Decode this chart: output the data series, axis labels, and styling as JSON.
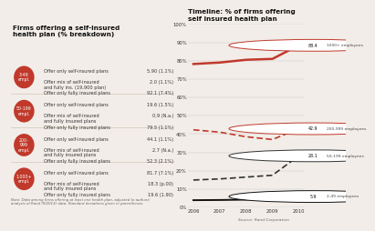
{
  "left_title": "Firms offering a self-insured\nhealth plan (% breakdown)",
  "right_title": "Timeline: % of firms offering\nself insured health plan",
  "source": "Source: Rand Corporation",
  "size_groups": [
    {
      "label": "3-49\nempl.",
      "rows": [
        {
          "text": "Offer only self-insured plans",
          "val": "5.90 (1.1%)"
        },
        {
          "text": "Offer mix of self-insured\nand fully ins. (19,900 plan)",
          "val": "2.0 (1.1%)"
        },
        {
          "text": "Offer only fully insured plans",
          "val": "92.1 (7.4%)"
        }
      ]
    },
    {
      "label": "50-199\nempl.",
      "rows": [
        {
          "text": "Offer only self-insured plans",
          "val": "19.6 (1.5%)"
        },
        {
          "text": "Offer mix of self-insured\nand fully insured plans",
          "val": "0.9 (N.a.)"
        },
        {
          "text": "Offer only fully insured plans",
          "val": "79.5 (1.1%)"
        }
      ]
    },
    {
      "label": "200-\n999\nempl.",
      "rows": [
        {
          "text": "Offer only self-insured plans",
          "val": "44.1 (1.1%)"
        },
        {
          "text": "Offer mix of self-insured\nand fully insured plans",
          "val": "2.7 (N.a.)"
        },
        {
          "text": "Offer only fully insured plans",
          "val": "52.3 (2.1%)"
        }
      ]
    },
    {
      "label": "1,000+\nempl.",
      "rows": [
        {
          "text": "Offer only self-insured plans",
          "val": "81.7 (7.1%)"
        },
        {
          "text": "Offer mix of self-insured\nand fully insured plans",
          "val": "18.3 (p.00)"
        },
        {
          "text": "Offer only fully insured plans",
          "val": "19.6 (1.90)"
        }
      ]
    }
  ],
  "years": [
    2006,
    2007,
    2008,
    2009,
    2010
  ],
  "lines": [
    {
      "label": "1000+ employees",
      "color": "#c0392b",
      "style": "solid",
      "lw": 1.8,
      "values": [
        78.2,
        79.0,
        80.5,
        81.0,
        88.4
      ],
      "end_label": "88.4"
    },
    {
      "label": "200-999 employees",
      "color": "#c0392b",
      "style": "dashed",
      "lw": 1.2,
      "values": [
        42.3,
        41.0,
        38.5,
        37.0,
        42.9
      ],
      "end_label": "42.9"
    },
    {
      "label": "50-199 employees",
      "color": "#333333",
      "style": "dashed",
      "lw": 1.2,
      "values": [
        14.9,
        15.5,
        16.5,
        17.5,
        28.1
      ],
      "end_label": "28.1"
    },
    {
      "label": "2-49 employees",
      "color": "#111111",
      "style": "solid",
      "lw": 1.4,
      "values": [
        3.9,
        4.0,
        4.2,
        4.5,
        5.9
      ],
      "end_label": "5.9"
    }
  ],
  "ylim": [
    0,
    100
  ],
  "yticks": [
    0,
    10,
    20,
    30,
    40,
    50,
    60,
    70,
    80,
    90,
    100
  ],
  "ytick_labels": [
    "0%",
    "10%",
    "20%",
    "30%",
    "40%",
    "50%",
    "60%",
    "70%",
    "80%",
    "90%",
    "100%"
  ],
  "note_text": "Note: Data among firms offering at least one health plan, adjusted to authors'\nanalysis of Rand (9/2013) data. Standard deviations given in parentheses.",
  "bg_color": "#f2ede8",
  "circle_color": "#c0392b",
  "sep_color": "#ccbbaa"
}
